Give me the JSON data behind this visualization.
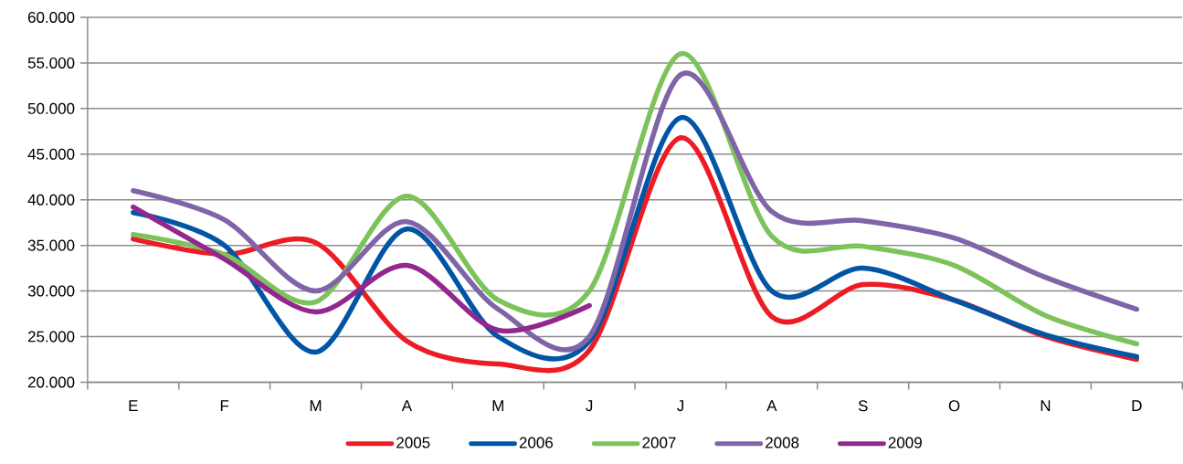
{
  "chart_data": {
    "type": "line",
    "categories": [
      "E",
      "F",
      "M",
      "A",
      "M",
      "J",
      "J",
      "A",
      "S",
      "O",
      "N",
      "D"
    ],
    "series": [
      {
        "name": "2005",
        "color": "#ed1c24",
        "values": [
          35700,
          34000,
          35300,
          24500,
          22000,
          23500,
          46800,
          27200,
          30700,
          29000,
          25000,
          22500
        ]
      },
      {
        "name": "2006",
        "color": "#0055a5",
        "values": [
          38600,
          35000,
          23300,
          36800,
          25000,
          24500,
          49000,
          30000,
          32500,
          29000,
          25200,
          22800
        ]
      },
      {
        "name": "2007",
        "color": "#7dc35b",
        "values": [
          36200,
          34000,
          28800,
          40400,
          29000,
          30000,
          56000,
          36000,
          34900,
          32800,
          27300,
          24200
        ]
      },
      {
        "name": "2008",
        "color": "#8064a8",
        "values": [
          41000,
          37800,
          30000,
          37600,
          28000,
          25000,
          53700,
          38700,
          37700,
          35800,
          31500,
          28000
        ]
      },
      {
        "name": "2009",
        "color": "#92278f",
        "values": [
          39200,
          33500,
          27700,
          32800,
          25700,
          28400,
          null,
          null,
          null,
          null,
          null,
          null
        ]
      }
    ],
    "ylim": [
      20000,
      60000
    ],
    "yticks": [
      {
        "value": 20000,
        "label": "20.000"
      },
      {
        "value": 25000,
        "label": "25.000"
      },
      {
        "value": 30000,
        "label": "30.000"
      },
      {
        "value": 35000,
        "label": "35.000"
      },
      {
        "value": 40000,
        "label": "40.000"
      },
      {
        "value": 45000,
        "label": "45.000"
      },
      {
        "value": 50000,
        "label": "50.000"
      },
      {
        "value": 55000,
        "label": "55.000"
      },
      {
        "value": 60000,
        "label": "60.000"
      }
    ],
    "grid": "y",
    "legend": "bottom"
  }
}
